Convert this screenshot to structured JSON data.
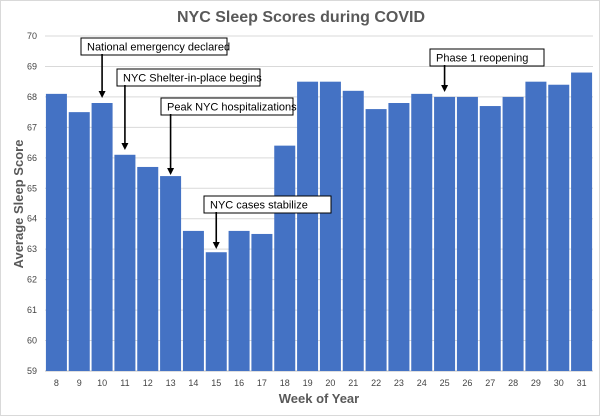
{
  "chart_data": {
    "type": "bar",
    "title": "NYC Sleep Scores during COVID",
    "xlabel": "Week of Year",
    "ylabel": "Average Sleep Score",
    "categories": [
      "8",
      "9",
      "10",
      "11",
      "12",
      "13",
      "14",
      "15",
      "16",
      "17",
      "18",
      "19",
      "20",
      "21",
      "22",
      "23",
      "24",
      "25",
      "26",
      "27",
      "28",
      "29",
      "30",
      "31"
    ],
    "values": [
      68.1,
      67.5,
      67.8,
      66.1,
      65.7,
      65.4,
      63.6,
      62.9,
      63.6,
      63.5,
      66.4,
      68.5,
      68.5,
      68.2,
      67.6,
      67.8,
      68.1,
      68.0,
      68.0,
      67.7,
      68.0,
      68.5,
      68.4,
      68.8
    ],
    "ylim": [
      59,
      70
    ],
    "yticks": [
      59,
      60,
      61,
      62,
      63,
      64,
      65,
      66,
      67,
      68,
      69,
      70
    ],
    "grid": true,
    "bar_color": "#4472c4",
    "annotations": [
      {
        "text": "National emergency declared",
        "week": "10"
      },
      {
        "text": "NYC Shelter-in-place begins",
        "week": "11"
      },
      {
        "text": "Peak NYC hospitalizations",
        "week": "13"
      },
      {
        "text": "NYC cases stabilize",
        "week": "15"
      },
      {
        "text": "Phase 1 reopening",
        "week": "25"
      }
    ]
  }
}
